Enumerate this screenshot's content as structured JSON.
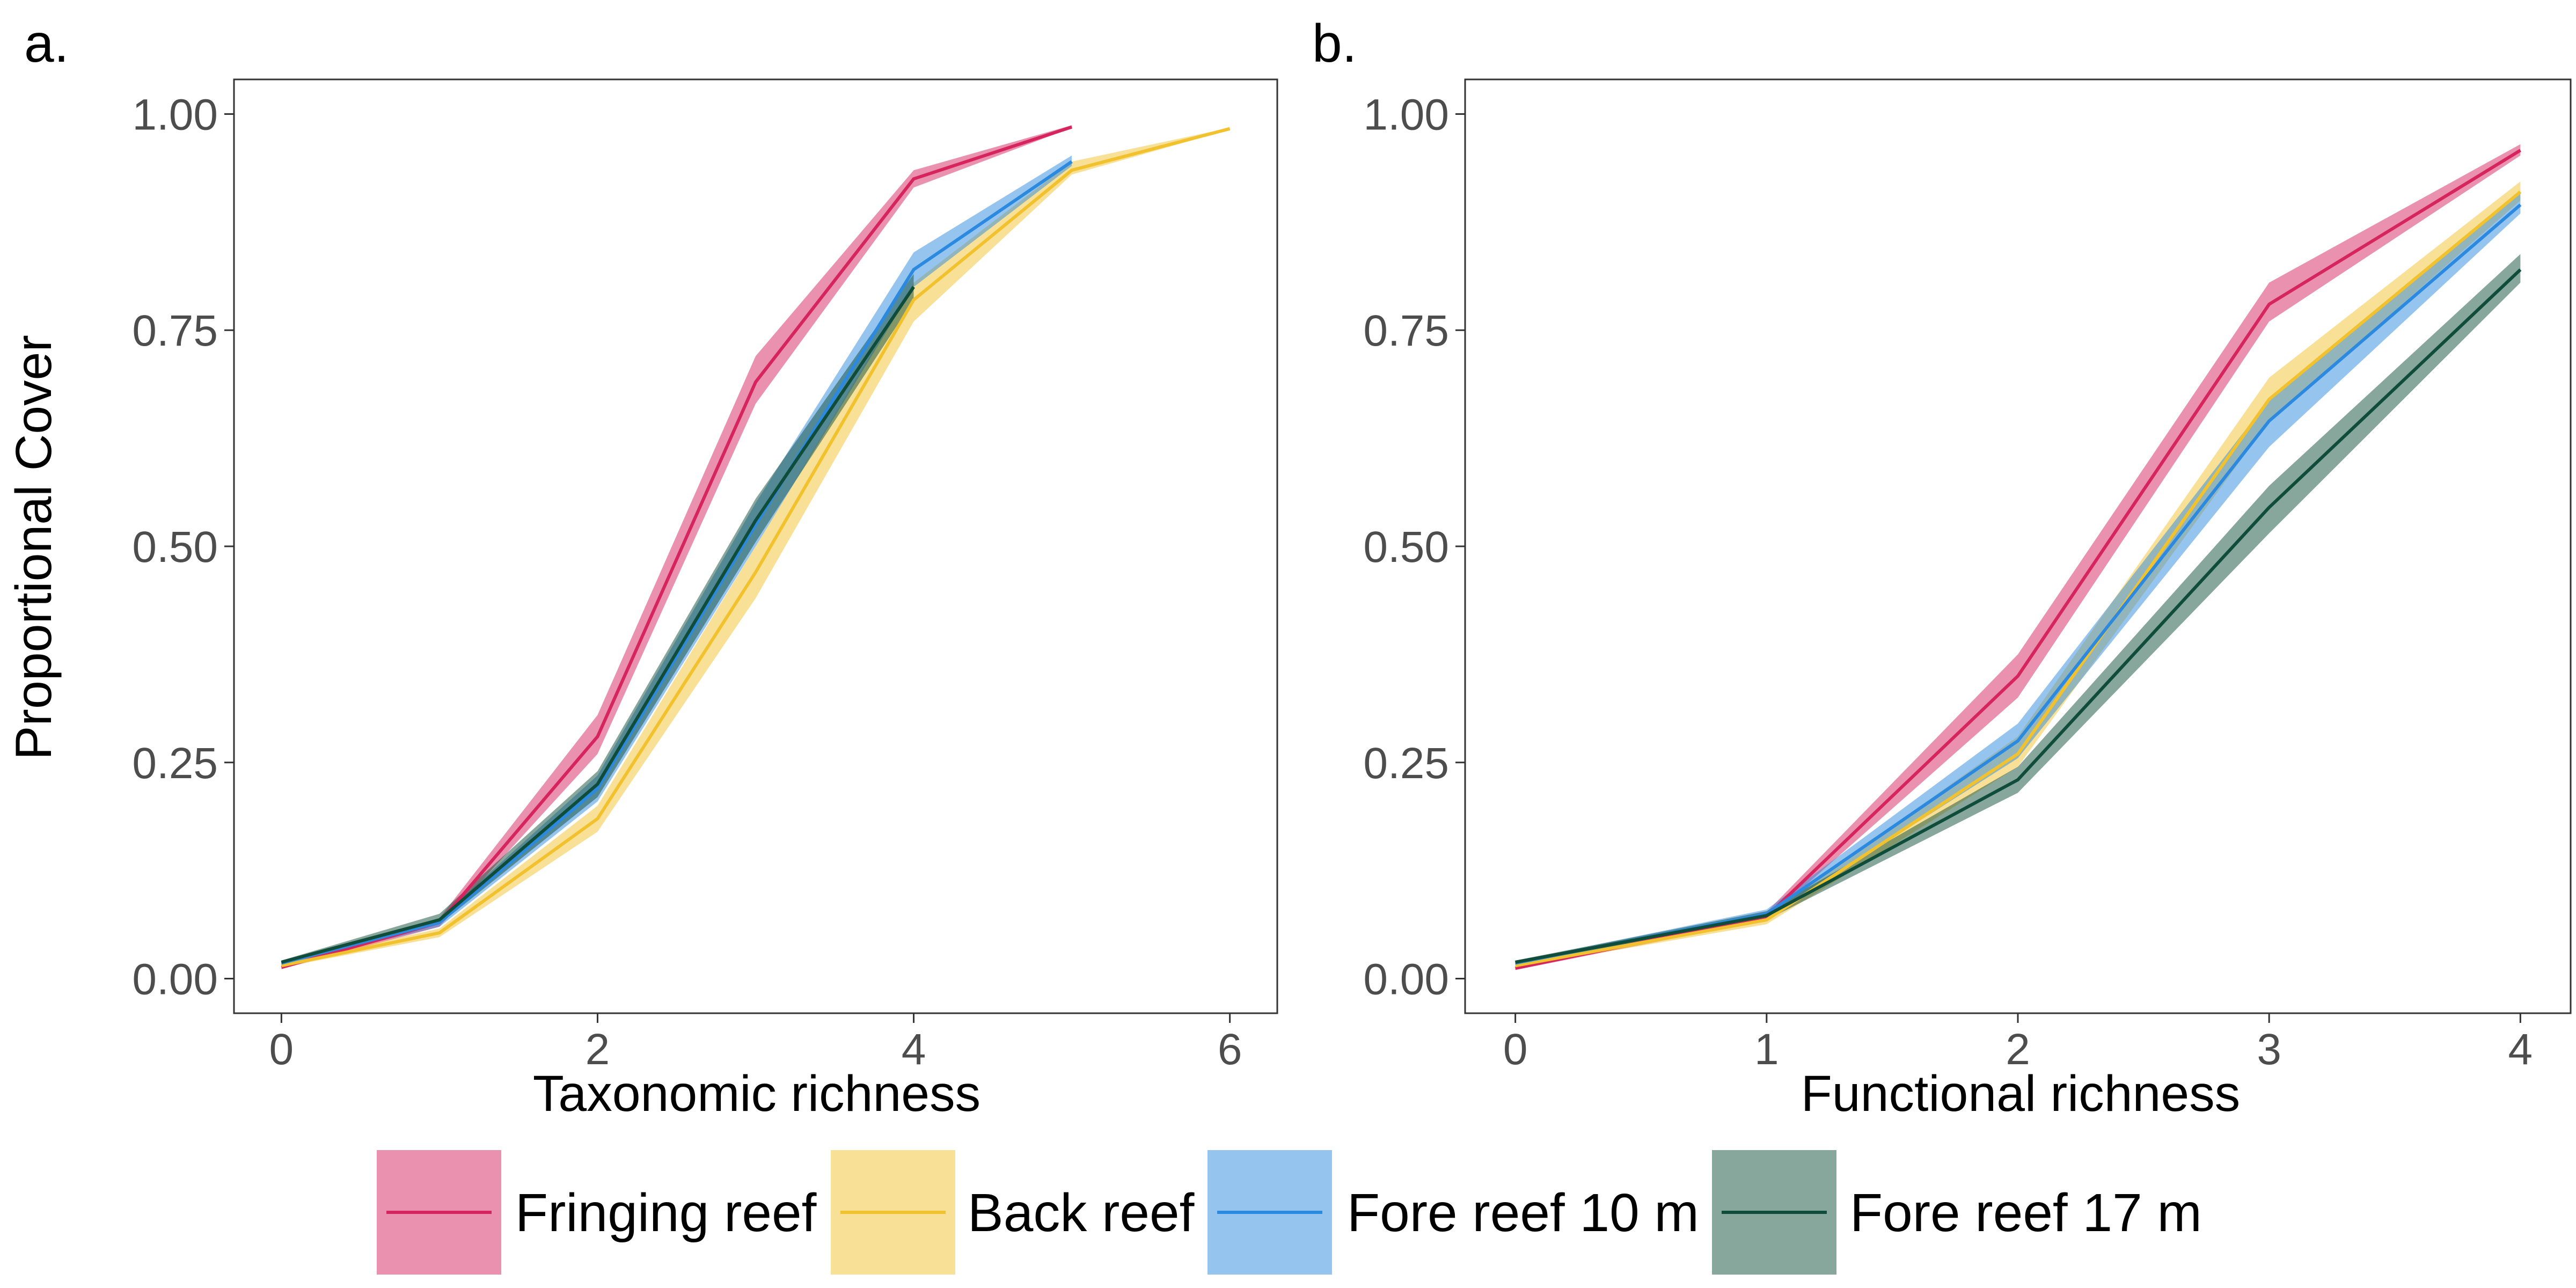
{
  "colors": {
    "fringing": "#D6245F",
    "back": "#F2C12E",
    "fore10": "#2B8AE0",
    "fore17": "#0F4D3A",
    "frame": "#333333",
    "tick_text": "#4d4d4d"
  },
  "shared": {
    "ylabel": "Proportional Cover"
  },
  "legend": {
    "items": [
      {
        "key": "fringing",
        "label": "Fringing reef"
      },
      {
        "key": "back",
        "label": "Back reef"
      },
      {
        "key": "fore10",
        "label": "Fore reef 10 m"
      },
      {
        "key": "fore17",
        "label": "Fore reef 17 m"
      }
    ]
  },
  "chart_data": [
    {
      "panel": "a.",
      "type": "line",
      "xlabel": "Taxonomic richness",
      "ylabel": "Proportional Cover",
      "xlim": [
        -0.3,
        6.3
      ],
      "ylim": [
        -0.04,
        1.04
      ],
      "xticks": [
        0,
        2,
        4,
        6
      ],
      "yticks": [
        0,
        0.25,
        0.5,
        0.75,
        1
      ],
      "ytick_labels": [
        "0.00",
        "0.25",
        "0.50",
        "0.75",
        "1.00"
      ],
      "grid": false,
      "series": [
        {
          "key": "fringing",
          "name": "Fringing reef",
          "x": [
            0,
            1,
            2,
            3,
            4,
            5
          ],
          "y": [
            0.013,
            0.065,
            0.28,
            0.69,
            0.925,
            0.985
          ],
          "lower": [
            0.011,
            0.06,
            0.26,
            0.665,
            0.915,
            0.984
          ],
          "upper": [
            0.015,
            0.07,
            0.305,
            0.72,
            0.935,
            0.987
          ]
        },
        {
          "key": "back",
          "name": "Back reef",
          "x": [
            0,
            1,
            2,
            3,
            4,
            5,
            6
          ],
          "y": [
            0.015,
            0.053,
            0.185,
            0.47,
            0.785,
            0.935,
            0.983
          ],
          "lower": [
            0.013,
            0.048,
            0.17,
            0.44,
            0.76,
            0.93,
            0.982
          ],
          "upper": [
            0.017,
            0.058,
            0.2,
            0.5,
            0.805,
            0.945,
            0.984
          ]
        },
        {
          "key": "fore10",
          "name": "Fore reef 10 m",
          "x": [
            0,
            1,
            2,
            3,
            4,
            5
          ],
          "y": [
            0.018,
            0.065,
            0.22,
            0.525,
            0.82,
            0.945
          ],
          "lower": [
            0.016,
            0.06,
            0.205,
            0.5,
            0.8,
            0.94
          ],
          "upper": [
            0.02,
            0.07,
            0.235,
            0.55,
            0.84,
            0.952
          ]
        },
        {
          "key": "fore17",
          "name": "Fore reef 17 m",
          "x": [
            0,
            1,
            2,
            3,
            4
          ],
          "y": [
            0.019,
            0.068,
            0.225,
            0.53,
            0.8
          ],
          "lower": [
            0.017,
            0.063,
            0.21,
            0.505,
            0.785
          ],
          "upper": [
            0.021,
            0.075,
            0.24,
            0.555,
            0.815
          ]
        }
      ]
    },
    {
      "panel": "b.",
      "type": "line",
      "xlabel": "Functional richness",
      "ylabel": "",
      "xlim": [
        -0.2,
        4.2
      ],
      "ylim": [
        -0.04,
        1.04
      ],
      "xticks": [
        0,
        1,
        2,
        3,
        4
      ],
      "yticks": [
        0,
        0.25,
        0.5,
        0.75,
        1
      ],
      "ytick_labels": [
        "0.00",
        "0.25",
        "0.50",
        "0.75",
        "1.00"
      ],
      "grid": false,
      "series": [
        {
          "key": "fringing",
          "name": "Fringing reef",
          "x": [
            0,
            1,
            2,
            3,
            4
          ],
          "y": [
            0.012,
            0.072,
            0.35,
            0.78,
            0.958
          ],
          "lower": [
            0.01,
            0.068,
            0.325,
            0.76,
            0.952
          ],
          "upper": [
            0.014,
            0.077,
            0.375,
            0.805,
            0.965
          ]
        },
        {
          "key": "back",
          "name": "Back reef",
          "x": [
            0,
            1,
            2,
            3,
            4
          ],
          "y": [
            0.015,
            0.068,
            0.26,
            0.67,
            0.91
          ],
          "lower": [
            0.013,
            0.063,
            0.245,
            0.645,
            0.9
          ],
          "upper": [
            0.017,
            0.073,
            0.28,
            0.695,
            0.922
          ]
        },
        {
          "key": "fore10",
          "name": "Fore reef 10 m",
          "x": [
            0,
            1,
            2,
            3,
            4
          ],
          "y": [
            0.018,
            0.075,
            0.275,
            0.645,
            0.895
          ],
          "lower": [
            0.016,
            0.07,
            0.255,
            0.615,
            0.885
          ],
          "upper": [
            0.02,
            0.08,
            0.295,
            0.67,
            0.91
          ]
        },
        {
          "key": "fore17",
          "name": "Fore reef 17 m",
          "x": [
            0,
            1,
            2,
            3,
            4
          ],
          "y": [
            0.019,
            0.073,
            0.23,
            0.545,
            0.82
          ],
          "lower": [
            0.017,
            0.068,
            0.215,
            0.515,
            0.805
          ],
          "upper": [
            0.021,
            0.078,
            0.245,
            0.57,
            0.838
          ]
        }
      ]
    }
  ]
}
